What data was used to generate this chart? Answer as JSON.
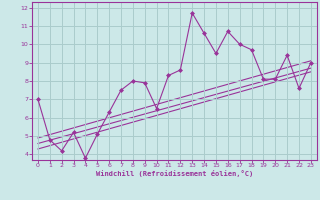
{
  "xlabel": "Windchill (Refroidissement éolien,°C)",
  "bg_color": "#cce8e8",
  "grid_color": "#aacccc",
  "line_color": "#993399",
  "xlim": [
    -0.5,
    23.5
  ],
  "ylim": [
    3.7,
    12.3
  ],
  "xticks": [
    0,
    1,
    2,
    3,
    4,
    5,
    6,
    7,
    8,
    9,
    10,
    11,
    12,
    13,
    14,
    15,
    16,
    17,
    18,
    19,
    20,
    21,
    22,
    23
  ],
  "yticks": [
    4,
    5,
    6,
    7,
    8,
    9,
    10,
    11,
    12
  ],
  "main_x": [
    0,
    1,
    2,
    3,
    4,
    5,
    6,
    7,
    8,
    9,
    10,
    11,
    12,
    13,
    14,
    15,
    16,
    17,
    18,
    19,
    20,
    21,
    22,
    23
  ],
  "main_y": [
    7.0,
    4.8,
    4.2,
    5.2,
    3.8,
    5.1,
    6.3,
    7.5,
    8.0,
    7.9,
    6.5,
    8.3,
    8.6,
    11.7,
    10.6,
    9.5,
    10.7,
    10.0,
    9.7,
    8.1,
    8.1,
    9.4,
    7.6,
    9.0
  ],
  "reg_lines": [
    {
      "x": [
        0,
        23
      ],
      "y": [
        4.6,
        8.7
      ]
    },
    {
      "x": [
        0,
        23
      ],
      "y": [
        4.9,
        9.1
      ]
    },
    {
      "x": [
        0,
        23
      ],
      "y": [
        4.3,
        8.5
      ]
    }
  ]
}
